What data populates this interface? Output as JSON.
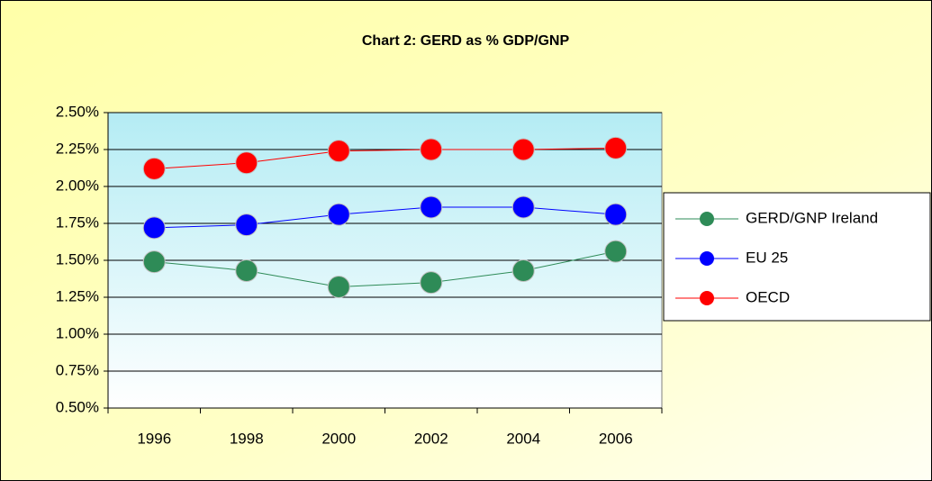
{
  "chart_data": {
    "type": "line",
    "title": "Chart 2: GERD as % GDP/GNP",
    "categories": [
      "1996",
      "1998",
      "2000",
      "2002",
      "2004",
      "2006"
    ],
    "series": [
      {
        "name": "GERD/GNP Ireland",
        "color": "#2e8b57",
        "values": [
          1.49,
          1.43,
          1.32,
          1.35,
          1.43,
          1.56
        ]
      },
      {
        "name": "EU 25",
        "color": "#0000ff",
        "values": [
          1.72,
          1.74,
          1.81,
          1.86,
          1.86,
          1.81
        ]
      },
      {
        "name": "OECD",
        "color": "#ff0000",
        "values": [
          2.12,
          2.16,
          2.24,
          2.25,
          2.25,
          2.26
        ]
      }
    ],
    "ylim": [
      0.5,
      2.5
    ],
    "yticks": [
      {
        "value": 0.5,
        "label": "0.50%"
      },
      {
        "value": 0.75,
        "label": "0.75%"
      },
      {
        "value": 1.0,
        "label": "1.00%"
      },
      {
        "value": 1.25,
        "label": "1.25%"
      },
      {
        "value": 1.5,
        "label": "1.50%"
      },
      {
        "value": 1.75,
        "label": "1.75%"
      },
      {
        "value": 2.0,
        "label": "2.00%"
      },
      {
        "value": 2.25,
        "label": "2.25%"
      },
      {
        "value": 2.5,
        "label": "2.50%"
      }
    ],
    "grid": true,
    "legend": "right"
  }
}
